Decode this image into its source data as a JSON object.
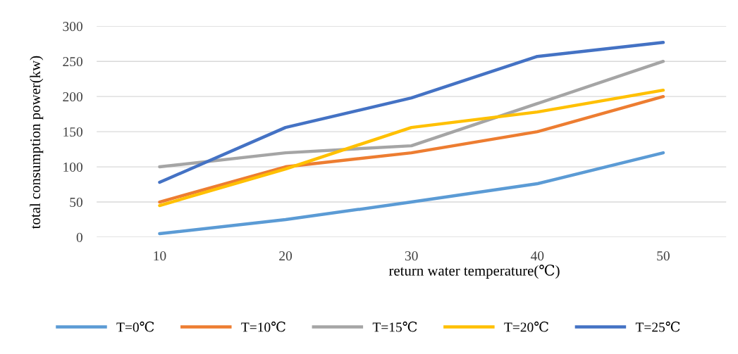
{
  "chart_data": {
    "type": "line",
    "xlabel": "return water temperature(℃)",
    "ylabel": "total consumption power(kw)",
    "categories": [
      "10",
      "20",
      "30",
      "40",
      "50"
    ],
    "series": [
      {
        "name": "T=0℃",
        "color": "#5b9bd5",
        "values": [
          5,
          25,
          50,
          76,
          120
        ]
      },
      {
        "name": "T=10℃",
        "color": "#ed7d31",
        "values": [
          50,
          100,
          120,
          150,
          200
        ]
      },
      {
        "name": "T=15℃",
        "color": "#a5a5a5",
        "values": [
          100,
          120,
          130,
          190,
          250
        ]
      },
      {
        "name": "T=20℃",
        "color": "#ffc000",
        "values": [
          45,
          97,
          156,
          178,
          209
        ]
      },
      {
        "name": "T=25℃",
        "color": "#4472c4",
        "values": [
          78,
          156,
          198,
          257,
          277
        ]
      }
    ],
    "ylim": [
      0,
      300
    ],
    "yticks": [
      0,
      50,
      100,
      150,
      200,
      250,
      300
    ],
    "grid": "y",
    "legend": "bottom",
    "marker": "none",
    "line_style": "solid"
  }
}
